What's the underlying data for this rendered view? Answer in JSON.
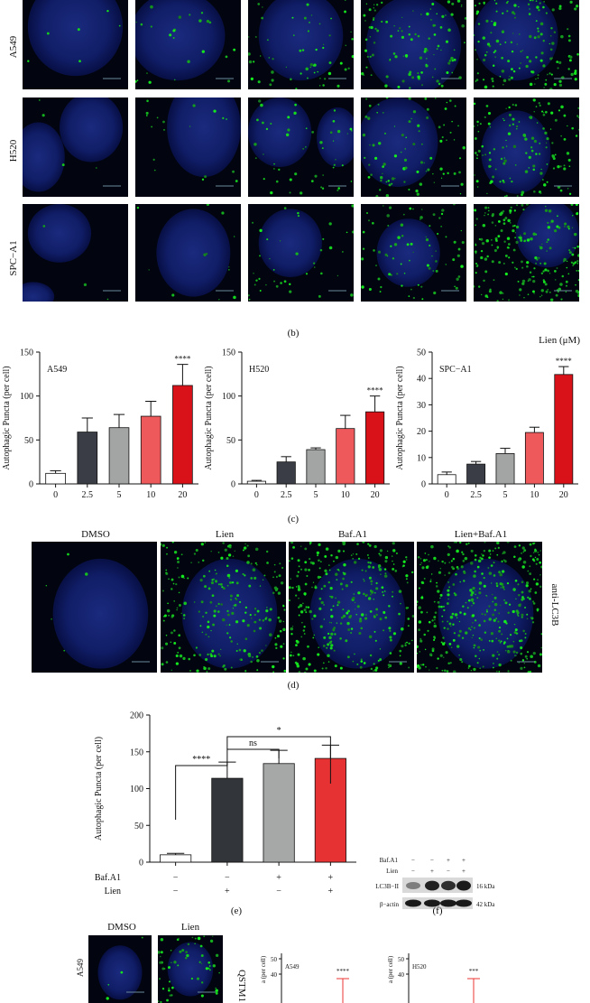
{
  "panel_b": {
    "rows": [
      "A549",
      "H520",
      "SPC−A1"
    ],
    "axis_note": "Lien (μM)",
    "caption": "(b)"
  },
  "panel_c_caption": "(c)",
  "panel_d": {
    "columns": [
      "DMSO",
      "Lien",
      "Baf.A1",
      "Lien+Baf.A1"
    ],
    "side_label": "anti-LC3B",
    "caption": "(d)"
  },
  "panel_e": {
    "caption": "(e)",
    "row_labels": [
      "Baf.A1",
      "Lien"
    ],
    "baf_signs": [
      "−",
      "−",
      "+",
      "+"
    ],
    "lien_signs": [
      "−",
      "+",
      "−",
      "+"
    ],
    "bracket_labels": [
      "****",
      "ns",
      "*"
    ]
  },
  "panel_f": {
    "caption": "(f)",
    "row_labels": [
      "Baf.A1",
      "Lien"
    ],
    "baf_signs": [
      "−",
      "−",
      "+",
      "+"
    ],
    "lien_signs": [
      "−",
      "+",
      "−",
      "+"
    ],
    "bands": [
      "LC3B−II",
      "β−actin"
    ],
    "sizes": [
      "16 kDa",
      "42 kDa"
    ]
  },
  "panel_g": {
    "columns": [
      "DMSO",
      "Lien"
    ],
    "row": "A549",
    "side_label": "QSTM1",
    "mini_charts": [
      {
        "label": "A549",
        "ylabel": "a (per cell)",
        "ticks": [
          "50",
          "40"
        ],
        "sig": "****"
      },
      {
        "label": "H520",
        "ylabel": "a (per cell)",
        "ticks": [
          "50",
          "40"
        ],
        "sig": "***"
      }
    ]
  },
  "chart_data": [
    {
      "type": "bar",
      "title": "A549",
      "ylabel": "Autophagic Puncta (per cell)",
      "categories": [
        "0",
        "2.5",
        "5",
        "10",
        "20"
      ],
      "values": [
        12,
        59,
        64,
        77,
        112
      ],
      "errors": [
        3,
        16,
        15,
        17,
        24
      ],
      "ylim": [
        0,
        150
      ],
      "yticks": [
        0,
        50,
        100,
        150
      ],
      "significance": [
        "",
        "",
        "",
        "",
        "****"
      ],
      "colors": [
        "#ffffff",
        "#3a3d45",
        "#a3a5a4",
        "#ee5a5c",
        "#d9121a"
      ]
    },
    {
      "type": "bar",
      "title": "H520",
      "ylabel": "Autophagic Puncta (per cell)",
      "categories": [
        "0",
        "2.5",
        "5",
        "10",
        "20"
      ],
      "values": [
        3,
        25,
        39,
        63,
        82
      ],
      "errors": [
        1,
        6,
        2,
        15,
        18
      ],
      "ylim": [
        0,
        150
      ],
      "yticks": [
        0,
        50,
        100,
        150
      ],
      "significance": [
        "",
        "",
        "",
        "",
        "****"
      ],
      "colors": [
        "#ffffff",
        "#3a3d45",
        "#a3a5a4",
        "#ee5a5c",
        "#d9121a"
      ]
    },
    {
      "type": "bar",
      "title": "SPC−A1",
      "ylabel": "Autophagic Puncta (per cell)",
      "categories": [
        "0",
        "2.5",
        "5",
        "10",
        "20"
      ],
      "values": [
        3.5,
        7.5,
        11.5,
        19.5,
        41.5
      ],
      "errors": [
        1,
        1,
        2,
        2,
        3
      ],
      "ylim": [
        0,
        50
      ],
      "yticks": [
        0,
        10,
        20,
        30,
        40,
        50
      ],
      "significance": [
        "",
        "",
        "",
        "",
        "****"
      ],
      "colors": [
        "#ffffff",
        "#3a3d45",
        "#a3a5a4",
        "#ee5a5c",
        "#d9121a"
      ]
    },
    {
      "type": "bar",
      "title": "",
      "ylabel": "Autophagic Puncta (per cell)",
      "categories": [
        "DMSO",
        "Lien",
        "Baf.A1",
        "Lien+Baf.A1"
      ],
      "values": [
        10,
        114,
        134,
        141
      ],
      "errors": [
        2,
        22,
        18,
        18
      ],
      "ylim": [
        0,
        200
      ],
      "yticks": [
        0,
        50,
        100,
        150,
        200
      ],
      "colors": [
        "#ffffff",
        "#323539",
        "#a5a8a7",
        "#e63232"
      ]
    }
  ]
}
